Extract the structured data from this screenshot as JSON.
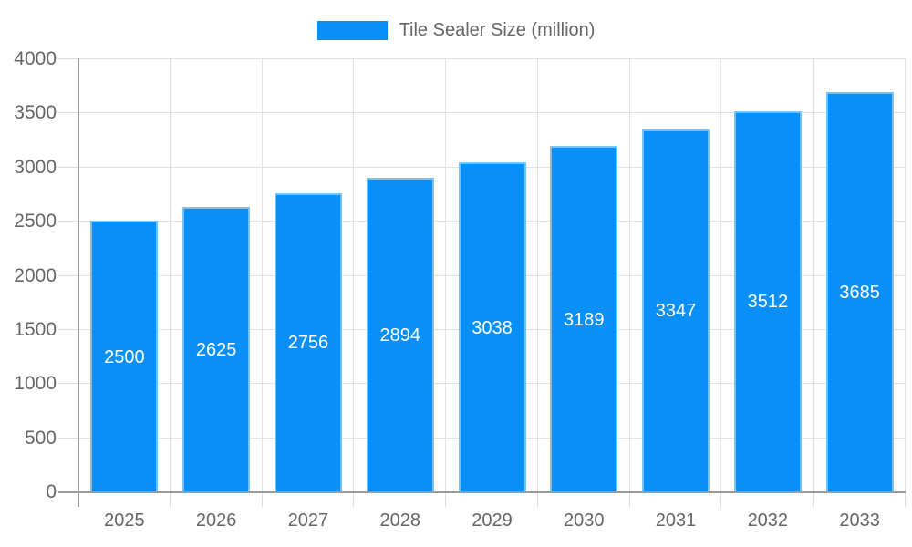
{
  "page": {
    "background": "#ffffff"
  },
  "legend": {
    "label": "Tile Sealer Size (million)"
  },
  "colors": {
    "bar": "#0890f8",
    "grid": "#e2e2e2",
    "tick": "#dcdcdc",
    "axis": "#9b9b9b",
    "axis_text": "#666666",
    "legend_text": "#666666",
    "value_label": "#ffffff"
  },
  "chart_data": {
    "type": "bar",
    "title": "Tile Sealer Size (million)",
    "categories": [
      "2025",
      "2026",
      "2027",
      "2028",
      "2029",
      "2030",
      "2031",
      "2032",
      "2033"
    ],
    "series": [
      {
        "name": "Tile Sealer Size (million)",
        "values": [
          2500,
          2625,
          2756,
          2894,
          3038,
          3189,
          3347,
          3512,
          3685
        ]
      }
    ],
    "xlabel": "",
    "ylabel": "",
    "ylim": [
      0,
      4000
    ],
    "yticks": [
      0,
      500,
      1000,
      1500,
      2000,
      2500,
      3000,
      3500,
      4000
    ],
    "grid": true,
    "legend_position": "top-center",
    "value_label_position": "inside-center"
  }
}
